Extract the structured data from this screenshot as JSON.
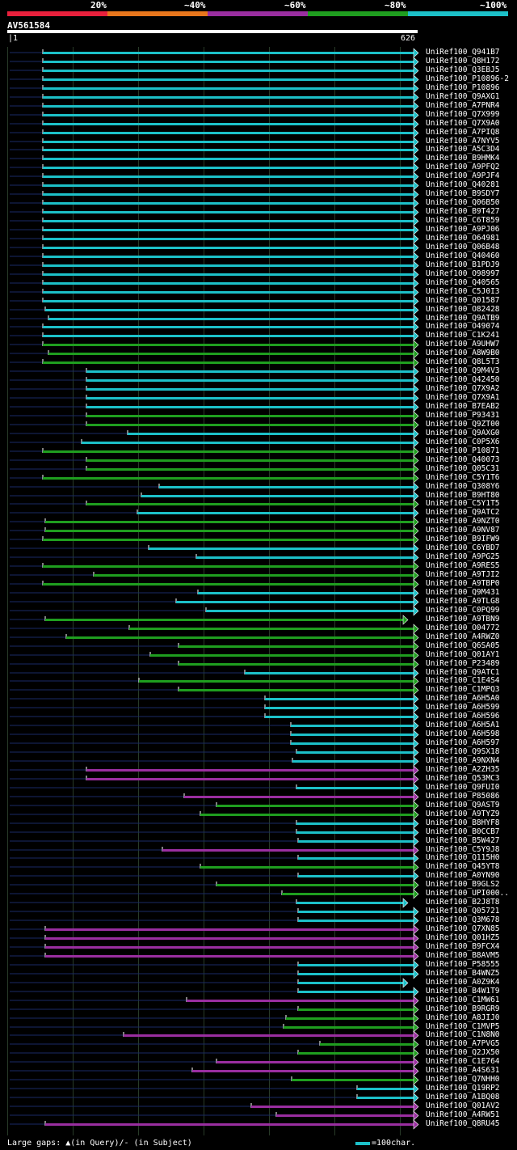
{
  "scale": {
    "labels": [
      "20%",
      "~40%",
      "~60%",
      "~80%",
      "~100%"
    ],
    "colors": [
      "#e8203c",
      "#e8761c",
      "#9a2ea0",
      "#1f9e1f",
      "#1cc0c8"
    ]
  },
  "query": {
    "name": "AV561584",
    "start": "1",
    "end": "626"
  },
  "footer": {
    "legend": "Large gaps: ▲(in Query)/- (in Subject)",
    "scale_text": "=100char."
  },
  "hits": [
    {
      "id": "UniRef100_Q941B7",
      "c": "cyan",
      "s": 53
    },
    {
      "id": "UniRef100_Q8H172",
      "c": "cyan",
      "s": 53
    },
    {
      "id": "UniRef100_Q3EBJ5",
      "c": "cyan",
      "s": 53
    },
    {
      "id": "UniRef100_P10896-2",
      "c": "cyan",
      "s": 53
    },
    {
      "id": "UniRef100_P10896",
      "c": "cyan",
      "s": 53
    },
    {
      "id": "UniRef100_Q9AXG1",
      "c": "cyan",
      "s": 53
    },
    {
      "id": "UniRef100_A7PNR4",
      "c": "cyan",
      "s": 53
    },
    {
      "id": "UniRef100_Q7X999",
      "c": "cyan",
      "s": 53
    },
    {
      "id": "UniRef100_Q7X9A0",
      "c": "cyan",
      "s": 53
    },
    {
      "id": "UniRef100_A7PIQ8",
      "c": "cyan",
      "s": 53
    },
    {
      "id": "UniRef100_A7NYV5",
      "c": "cyan",
      "s": 53
    },
    {
      "id": "UniRef100_A5C3D4",
      "c": "cyan",
      "s": 53
    },
    {
      "id": "UniRef100_B9HMK4",
      "c": "cyan",
      "s": 53
    },
    {
      "id": "UniRef100_A9PFQ2",
      "c": "cyan",
      "s": 53
    },
    {
      "id": "UniRef100_A9PJF4",
      "c": "cyan",
      "s": 53
    },
    {
      "id": "UniRef100_Q40281",
      "c": "cyan",
      "s": 53
    },
    {
      "id": "UniRef100_B9SDY7",
      "c": "cyan",
      "s": 53
    },
    {
      "id": "UniRef100_Q06B50",
      "c": "cyan",
      "s": 53
    },
    {
      "id": "UniRef100_B9T427",
      "c": "cyan",
      "s": 53
    },
    {
      "id": "UniRef100_C6T859",
      "c": "cyan",
      "s": 53
    },
    {
      "id": "UniRef100_A9PJ06",
      "c": "cyan",
      "s": 53
    },
    {
      "id": "UniRef100_O64981",
      "c": "cyan",
      "s": 53
    },
    {
      "id": "UniRef100_Q06B48",
      "c": "cyan",
      "s": 53
    },
    {
      "id": "UniRef100_Q40460",
      "c": "cyan",
      "s": 53
    },
    {
      "id": "UniRef100_B1PDJ9",
      "c": "cyan",
      "s": 53
    },
    {
      "id": "UniRef100_O98997",
      "c": "cyan",
      "s": 53
    },
    {
      "id": "UniRef100_Q40565",
      "c": "cyan",
      "s": 53
    },
    {
      "id": "UniRef100_C5J0I3",
      "c": "cyan",
      "s": 53
    },
    {
      "id": "UniRef100_Q01587",
      "c": "cyan",
      "s": 53
    },
    {
      "id": "UniRef100_O82428",
      "c": "cyan",
      "s": 56
    },
    {
      "id": "UniRef100_Q9ATB9",
      "c": "cyan",
      "s": 60
    },
    {
      "id": "UniRef100_O49074",
      "c": "cyan",
      "s": 53
    },
    {
      "id": "UniRef100_C1K241",
      "c": "cyan",
      "s": 53
    },
    {
      "id": "UniRef100_A9UHW7",
      "c": "green",
      "s": 53
    },
    {
      "id": "UniRef100_A8W9B0",
      "c": "green",
      "s": 60
    },
    {
      "id": "UniRef100_Q8L5T3",
      "c": "green",
      "s": 53
    },
    {
      "id": "UniRef100_Q9M4V3",
      "c": "cyan",
      "s": 107
    },
    {
      "id": "UniRef100_Q42450",
      "c": "cyan",
      "s": 107
    },
    {
      "id": "UniRef100_Q7X9A2",
      "c": "cyan",
      "s": 107
    },
    {
      "id": "UniRef100_Q7X9A1",
      "c": "cyan",
      "s": 107
    },
    {
      "id": "UniRef100_B7EAB2",
      "c": "cyan",
      "s": 107
    },
    {
      "id": "UniRef100_P93431",
      "c": "green",
      "s": 107
    },
    {
      "id": "UniRef100_Q9ZT00",
      "c": "green",
      "s": 107
    },
    {
      "id": "UniRef100_Q9AXG0",
      "c": "cyan",
      "s": 158
    },
    {
      "id": "UniRef100_C0P5X6",
      "c": "cyan",
      "s": 101
    },
    {
      "id": "UniRef100_P10871",
      "c": "green",
      "s": 53
    },
    {
      "id": "UniRef100_Q40073",
      "c": "green",
      "s": 107
    },
    {
      "id": "UniRef100_Q05C31",
      "c": "green",
      "s": 107
    },
    {
      "id": "UniRef100_C5Y1T6",
      "c": "green",
      "s": 53
    },
    {
      "id": "UniRef100_Q308Y6",
      "c": "cyan",
      "s": 197
    },
    {
      "id": "UniRef100_B9HT80",
      "c": "cyan",
      "s": 175
    },
    {
      "id": "UniRef100_C5Y1T5",
      "c": "green",
      "s": 107
    },
    {
      "id": "UniRef100_Q9ATC2",
      "c": "cyan",
      "s": 170
    },
    {
      "id": "UniRef100_A9NZT0",
      "c": "green",
      "s": 56
    },
    {
      "id": "UniRef100_A9NV87",
      "c": "green",
      "s": 56
    },
    {
      "id": "UniRef100_B9IFW9",
      "c": "green",
      "s": 53
    },
    {
      "id": "UniRef100_C6YBD7",
      "c": "cyan",
      "s": 184
    },
    {
      "id": "UniRef100_A9PG25",
      "c": "cyan",
      "s": 243
    },
    {
      "id": "UniRef100_A9RES5",
      "c": "green",
      "s": 53
    },
    {
      "id": "UniRef100_A9TJI2",
      "c": "green",
      "s": 116
    },
    {
      "id": "UniRef100_A9TBP0",
      "c": "green",
      "s": 53
    },
    {
      "id": "UniRef100_Q9M431",
      "c": "cyan",
      "s": 245
    },
    {
      "id": "UniRef100_A9TLG8",
      "c": "cyan",
      "s": 218
    },
    {
      "id": "UniRef100_C0PQ99",
      "c": "cyan",
      "s": 255
    },
    {
      "id": "UniRef100_A9TBN9",
      "c": "green",
      "s": 56,
      "short": 1
    },
    {
      "id": "UniRef100_O04772",
      "c": "green",
      "s": 160
    },
    {
      "id": "UniRef100_A4RWZ0",
      "c": "green",
      "s": 82
    },
    {
      "id": "UniRef100_Q6SA05",
      "c": "green",
      "s": 221
    },
    {
      "id": "UniRef100_Q01AY1",
      "c": "green",
      "s": 186
    },
    {
      "id": "UniRef100_P23489",
      "c": "green",
      "s": 221
    },
    {
      "id": "UniRef100_Q9ATC1",
      "c": "cyan",
      "s": 303
    },
    {
      "id": "UniRef100_C1E4S4",
      "c": "green",
      "s": 172
    },
    {
      "id": "UniRef100_C1MPQ3",
      "c": "green",
      "s": 221
    },
    {
      "id": "UniRef100_A6H5A0",
      "c": "cyan",
      "s": 328
    },
    {
      "id": "UniRef100_A6H599",
      "c": "cyan",
      "s": 328
    },
    {
      "id": "UniRef100_A6H596",
      "c": "cyan",
      "s": 328
    },
    {
      "id": "UniRef100_A6H5A1",
      "c": "cyan",
      "s": 360
    },
    {
      "id": "UniRef100_A6H598",
      "c": "cyan",
      "s": 360
    },
    {
      "id": "UniRef100_A6H597",
      "c": "cyan",
      "s": 360
    },
    {
      "id": "UniRef100_Q9SX18",
      "c": "cyan",
      "s": 367
    },
    {
      "id": "UniRef100_A9NXN4",
      "c": "cyan",
      "s": 362
    },
    {
      "id": "UniRef100_A2ZH35",
      "c": "purple",
      "s": 107
    },
    {
      "id": "UniRef100_Q53MC3",
      "c": "purple",
      "s": 107
    },
    {
      "id": "UniRef100_Q9FUI0",
      "c": "cyan",
      "s": 367
    },
    {
      "id": "UniRef100_P85086",
      "c": "purple",
      "s": 228
    },
    {
      "id": "UniRef100_Q9AST9",
      "c": "green",
      "s": 268
    },
    {
      "id": "UniRef100_A9TYZ9",
      "c": "green",
      "s": 248
    },
    {
      "id": "UniRef100_B8HYF8",
      "c": "cyan",
      "s": 367
    },
    {
      "id": "UniRef100_B0CCB7",
      "c": "cyan",
      "s": 367
    },
    {
      "id": "UniRef100_B5W427",
      "c": "cyan",
      "s": 369
    },
    {
      "id": "UniRef100_C5Y9J8",
      "c": "purple",
      "s": 201
    },
    {
      "id": "UniRef100_Q115H0",
      "c": "cyan",
      "s": 369
    },
    {
      "id": "UniRef100_Q45YT8",
      "c": "green",
      "s": 248
    },
    {
      "id": "UniRef100_A0YN90",
      "c": "cyan",
      "s": 369
    },
    {
      "id": "UniRef100_B9GLS2",
      "c": "green",
      "s": 268
    },
    {
      "id": "UniRef100_UPI000..",
      "c": "green",
      "s": 349
    },
    {
      "id": "UniRef100_B2J8T8",
      "c": "cyan",
      "s": 367,
      "short": 1
    },
    {
      "id": "UniRef100_Q05721",
      "c": "cyan",
      "s": 369
    },
    {
      "id": "UniRef100_Q3M678",
      "c": "cyan",
      "s": 369
    },
    {
      "id": "UniRef100_Q7XN85",
      "c": "purple",
      "s": 56
    },
    {
      "id": "UniRef100_Q01HZ5",
      "c": "purple",
      "s": 56
    },
    {
      "id": "UniRef100_B9FCX4",
      "c": "purple",
      "s": 56
    },
    {
      "id": "UniRef100_B8AVM5",
      "c": "purple",
      "s": 56
    },
    {
      "id": "UniRef100_P58555",
      "c": "cyan",
      "s": 369
    },
    {
      "id": "UniRef100_B4WNZ5",
      "c": "cyan",
      "s": 369
    },
    {
      "id": "UniRef100_A0Z9K4",
      "c": "cyan",
      "s": 369,
      "short": 1
    },
    {
      "id": "UniRef100_B4W1T9",
      "c": "cyan",
      "s": 369
    },
    {
      "id": "UniRef100_C1MW61",
      "c": "purple",
      "s": 231
    },
    {
      "id": "UniRef100_B9RGR9",
      "c": "green",
      "s": 369
    },
    {
      "id": "UniRef100_A8JIJ0",
      "c": "green",
      "s": 354
    },
    {
      "id": "UniRef100_C1MVP5",
      "c": "green",
      "s": 351
    },
    {
      "id": "UniRef100_C1N8N0",
      "c": "purple",
      "s": 153
    },
    {
      "id": "UniRef100_A7PVG5",
      "c": "green",
      "s": 396
    },
    {
      "id": "UniRef100_Q2JX50",
      "c": "green",
      "s": 369
    },
    {
      "id": "UniRef100_C1E764",
      "c": "purple",
      "s": 268
    },
    {
      "id": "UniRef100_A4S631",
      "c": "purple",
      "s": 238
    },
    {
      "id": "UniRef100_Q7NHH0",
      "c": "green",
      "s": 361
    },
    {
      "id": "UniRef100_Q19RP2",
      "c": "cyan",
      "s": 442
    },
    {
      "id": "UniRef100_A1BQ08",
      "c": "cyan",
      "s": 442
    },
    {
      "id": "UniRef100_Q01AV2",
      "c": "purple",
      "s": 311
    },
    {
      "id": "UniRef100_A4RW51",
      "c": "purple",
      "s": 342
    },
    {
      "id": "UniRef100_Q8RU45",
      "c": "purple",
      "s": 56
    }
  ]
}
